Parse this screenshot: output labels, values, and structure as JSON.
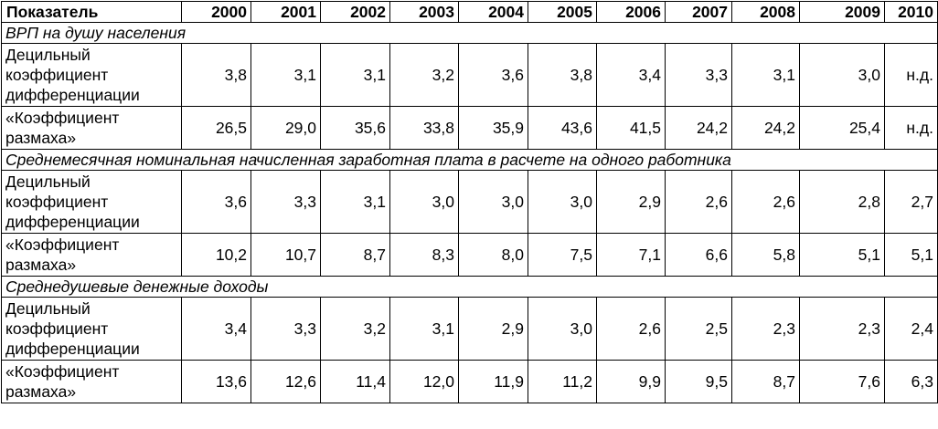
{
  "header": {
    "indicator": "Показатель",
    "years": [
      "2000",
      "2001",
      "2002",
      "2003",
      "2004",
      "2005",
      "2006",
      "2007",
      "2008",
      "2009",
      "2010"
    ]
  },
  "sections": [
    {
      "title": "ВРП на душу населения",
      "rows": [
        {
          "label": "Децильный коэффициент дифференциации",
          "values": [
            "3,8",
            "3,1",
            "3,1",
            "3,2",
            "3,6",
            "3,8",
            "3,4",
            "3,3",
            "3,1",
            "3,0",
            "н.д."
          ]
        },
        {
          "label": "«Коэффициент размаха»",
          "values": [
            "26,5",
            "29,0",
            "35,6",
            "33,8",
            "35,9",
            "43,6",
            "41,5",
            "24,2",
            "24,2",
            "25,4",
            "н.д."
          ]
        }
      ]
    },
    {
      "title": "Среднемесячная номинальная начисленная заработная плата в расчете на одного работника",
      "rows": [
        {
          "label": "Децильный коэффициент дифференциации",
          "values": [
            "3,6",
            "3,3",
            "3,1",
            "3,0",
            "3,0",
            "3,0",
            "2,9",
            "2,6",
            "2,6",
            "2,8",
            "2,7"
          ]
        },
        {
          "label": "«Коэффициент размаха»",
          "values": [
            "10,2",
            "10,7",
            "8,7",
            "8,3",
            "8,0",
            "7,5",
            "7,1",
            "6,6",
            "5,8",
            "5,1",
            "5,1"
          ]
        }
      ]
    },
    {
      "title": "Среднедушевые денежные доходы",
      "rows": [
        {
          "label": "Децильный коэффициент дифференциации",
          "values": [
            "3,4",
            "3,3",
            "3,2",
            "3,1",
            "2,9",
            "3,0",
            "2,6",
            "2,5",
            "2,3",
            "2,3",
            "2,4"
          ]
        },
        {
          "label": "«Коэффициент размаха»",
          "values": [
            "13,6",
            "12,6",
            "11,4",
            "12,0",
            "11,9",
            "11,2",
            "9,9",
            "9,5",
            "8,7",
            "7,6",
            "6,3"
          ]
        }
      ]
    }
  ]
}
